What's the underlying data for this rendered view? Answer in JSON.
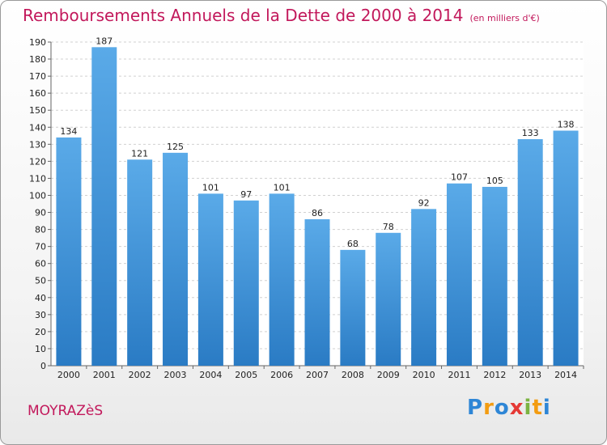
{
  "header": {
    "title": "Remboursements Annuels de la Dette de 2000 à 2014",
    "unit": "(en milliers d'€)"
  },
  "footer": {
    "commune": "MOYRAZèS",
    "logo_letters": [
      {
        "char": "P",
        "color": "#2e86d6"
      },
      {
        "char": "r",
        "color": "#f39c12"
      },
      {
        "char": "o",
        "color": "#2e86d6"
      },
      {
        "char": "x",
        "color": "#e53935"
      },
      {
        "char": "i",
        "color": "#7cb342"
      },
      {
        "char": "t",
        "color": "#f39c12"
      },
      {
        "char": "i",
        "color": "#2e86d6"
      }
    ]
  },
  "chart_data": {
    "type": "bar",
    "categories": [
      "2000",
      "2001",
      "2002",
      "2003",
      "2004",
      "2005",
      "2006",
      "2007",
      "2008",
      "2009",
      "2010",
      "2011",
      "2012",
      "2013",
      "2014"
    ],
    "values": [
      134,
      187,
      121,
      125,
      101,
      97,
      101,
      86,
      68,
      78,
      92,
      107,
      105,
      133,
      138
    ],
    "ylim": [
      0,
      190
    ],
    "yticks": [
      0,
      10,
      20,
      30,
      40,
      50,
      60,
      70,
      80,
      90,
      100,
      110,
      120,
      130,
      140,
      150,
      160,
      170,
      180,
      190
    ],
    "grid": true,
    "bar_color_top": "#5aaae8",
    "bar_color_bottom": "#2a7bc4"
  }
}
